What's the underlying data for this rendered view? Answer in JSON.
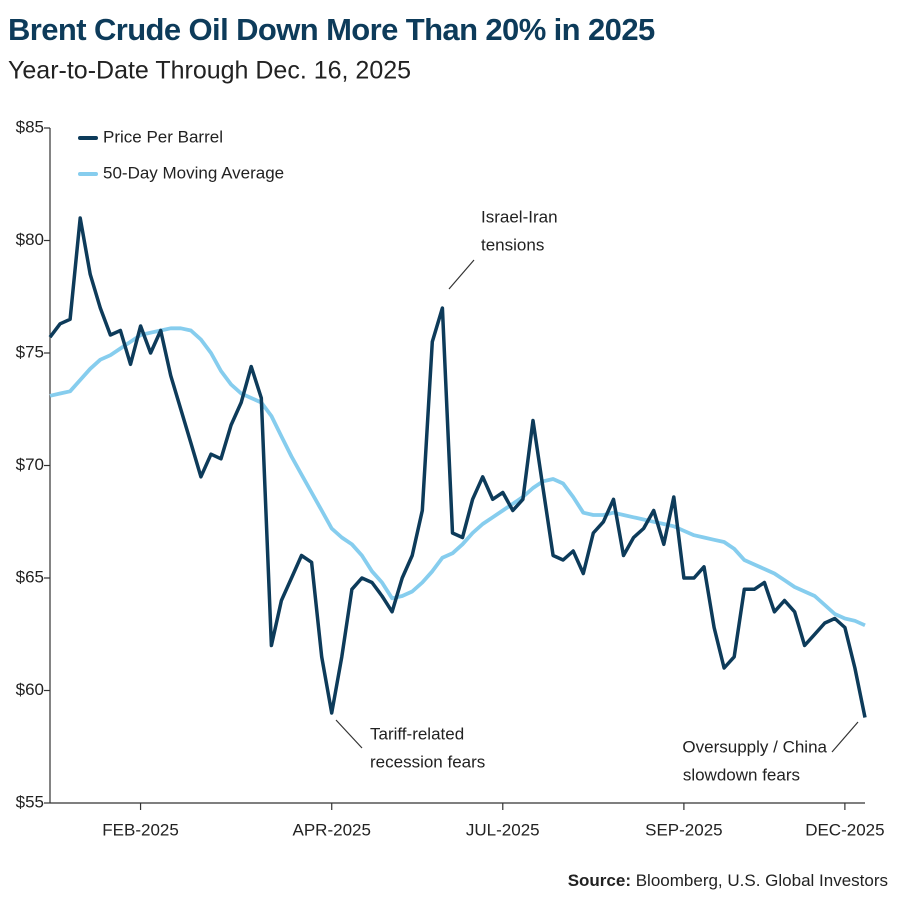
{
  "chart_data": {
    "type": "line",
    "title": "Brent Crude Oil Down More Than 20% in 2025",
    "subtitle": "Year-to-Date Through Dec. 16, 2025",
    "categories": [
      null,
      null,
      null,
      null,
      null,
      null,
      null,
      null,
      null,
      "FEB-2025",
      null,
      null,
      null,
      null,
      null,
      null,
      null,
      null,
      null,
      null,
      null,
      null,
      null,
      null,
      null,
      null,
      null,
      null,
      "APR-2025",
      null,
      null,
      null,
      null,
      null,
      null,
      null,
      null,
      null,
      null,
      null,
      null,
      null,
      null,
      null,
      null,
      "JUL-2025",
      null,
      null,
      null,
      null,
      null,
      null,
      null,
      null,
      null,
      null,
      null,
      null,
      null,
      null,
      null,
      null,
      null,
      "SEP-2025",
      null,
      null,
      null,
      null,
      null,
      null,
      null,
      null,
      null,
      null,
      null,
      null,
      null,
      null,
      null,
      "DEC-2025",
      null,
      null
    ],
    "series": [
      {
        "name": "Price Per Barrel",
        "color": "#0d3b5a",
        "values": [
          75.7,
          76.3,
          76.5,
          81.0,
          78.5,
          77.0,
          75.8,
          76.0,
          74.5,
          76.2,
          75.0,
          76.0,
          74.0,
          72.5,
          71.0,
          69.5,
          70.5,
          70.3,
          71.8,
          72.8,
          74.4,
          73.0,
          62.0,
          64.0,
          65.0,
          66.0,
          65.7,
          61.5,
          59.0,
          61.5,
          64.5,
          65.0,
          64.8,
          64.2,
          63.5,
          65.0,
          66.0,
          68.0,
          75.5,
          77.0,
          67.0,
          66.8,
          68.5,
          69.5,
          68.5,
          68.8,
          68.0,
          68.5,
          72.0,
          69.0,
          66.0,
          65.8,
          66.2,
          65.2,
          67.0,
          67.5,
          68.5,
          66.0,
          66.8,
          67.2,
          68.0,
          66.5,
          68.6,
          65.0,
          65.0,
          65.5,
          62.8,
          61.0,
          61.5,
          64.5,
          64.5,
          64.8,
          63.5,
          64.0,
          63.5,
          62.0,
          62.5,
          63.0,
          63.2,
          62.8,
          61.0,
          58.8
        ]
      },
      {
        "name": "50-Day Moving Average",
        "color": "#86cdee",
        "values": [
          73.1,
          73.2,
          73.3,
          73.8,
          74.3,
          74.7,
          74.9,
          75.2,
          75.5,
          75.8,
          75.9,
          76.0,
          76.1,
          76.1,
          76.0,
          75.6,
          75.0,
          74.2,
          73.6,
          73.2,
          73.0,
          72.8,
          72.2,
          71.3,
          70.4,
          69.6,
          68.8,
          68.0,
          67.2,
          66.8,
          66.5,
          66.0,
          65.3,
          64.8,
          64.1,
          64.2,
          64.4,
          64.8,
          65.3,
          65.9,
          66.1,
          66.5,
          67.0,
          67.4,
          67.7,
          68.0,
          68.3,
          68.6,
          69.0,
          69.3,
          69.4,
          69.2,
          68.6,
          67.9,
          67.8,
          67.8,
          67.9,
          67.8,
          67.7,
          67.6,
          67.5,
          67.4,
          67.3,
          67.1,
          66.9,
          66.8,
          66.7,
          66.6,
          66.3,
          65.8,
          65.6,
          65.4,
          65.2,
          64.9,
          64.6,
          64.4,
          64.2,
          63.8,
          63.4,
          63.2,
          63.1,
          62.9
        ]
      }
    ],
    "ylim": [
      55,
      85
    ],
    "yticks": [
      {
        "value": 55,
        "label": "$55"
      },
      {
        "value": 60,
        "label": "$60"
      },
      {
        "value": 65,
        "label": "$65"
      },
      {
        "value": 70,
        "label": "$70"
      },
      {
        "value": 75,
        "label": "$75"
      },
      {
        "value": 80,
        "label": "$80"
      },
      {
        "value": 85,
        "label": "$85"
      }
    ],
    "legend": "top-left",
    "annotations": [
      {
        "lines": [
          "Israel-Iran",
          "tensions"
        ]
      },
      {
        "lines": [
          "Tariff-related",
          "recession fears"
        ]
      },
      {
        "lines": [
          "Oversupply / China",
          "slowdown fears"
        ]
      }
    ],
    "source_label": "Source:",
    "source": "Bloomberg, U.S. Global Investors"
  }
}
